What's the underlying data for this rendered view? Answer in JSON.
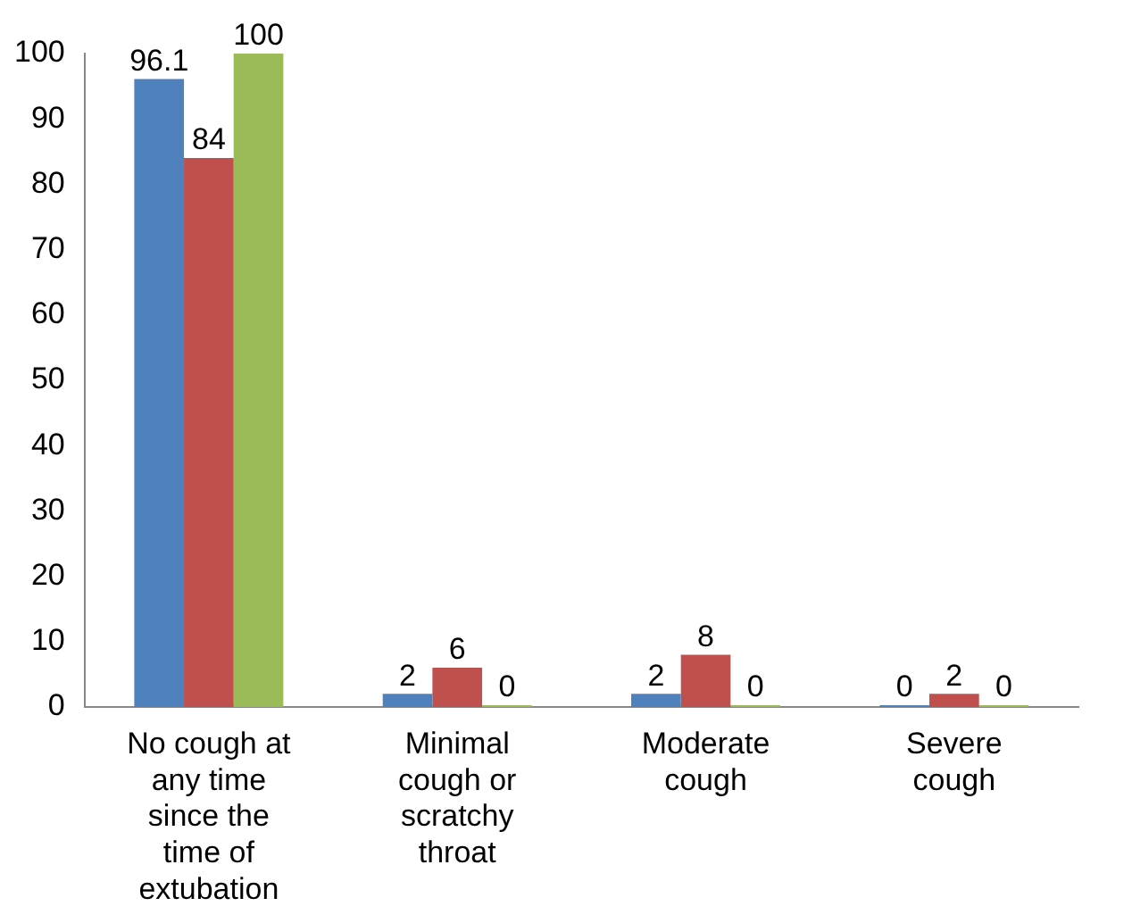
{
  "chart_data": {
    "type": "bar",
    "categories": [
      "No cough at any time since the time of extubation",
      "Minimal cough or scratchy throat",
      "Moderate cough",
      "Severe cough"
    ],
    "series": [
      {
        "color": "#4f81bd",
        "values": [
          96.1,
          2,
          2,
          0
        ]
      },
      {
        "color": "#c0504d",
        "values": [
          84,
          6,
          8,
          2
        ]
      },
      {
        "color": "#9bbb59",
        "values": [
          100,
          0,
          0,
          0
        ]
      }
    ],
    "ylim": [
      0,
      100
    ],
    "yticks": [
      0,
      10,
      20,
      30,
      40,
      50,
      60,
      70,
      80,
      90,
      100
    ],
    "grid": false,
    "legend": false,
    "data_labels": true
  }
}
